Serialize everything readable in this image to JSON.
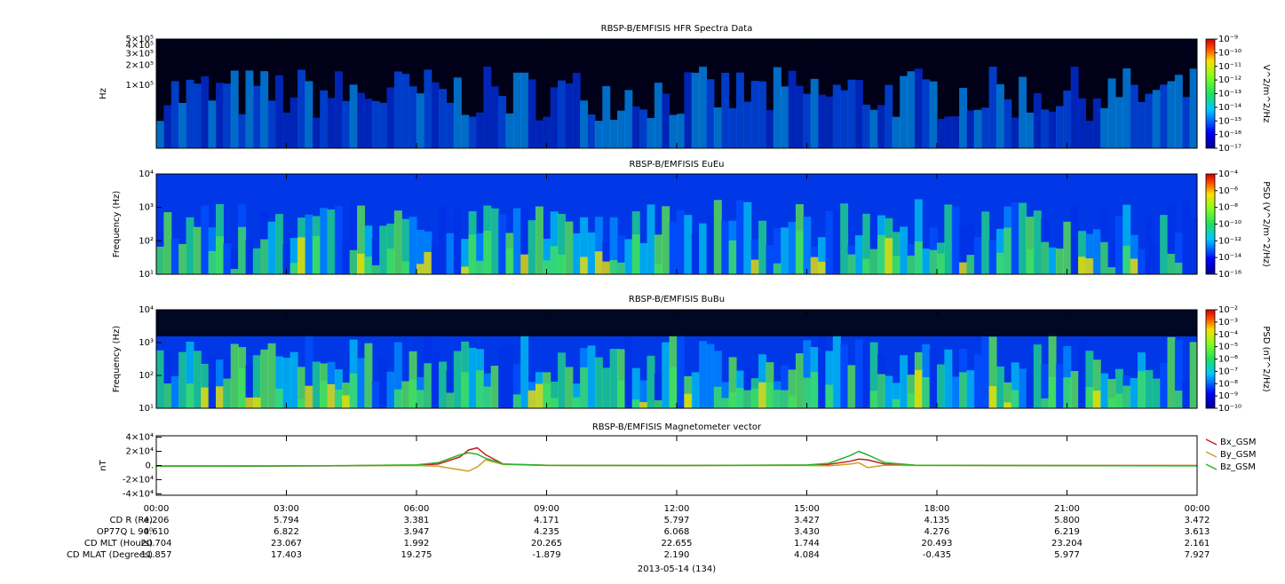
{
  "chart_data": [
    {
      "type": "spectrogram",
      "title": "RBSP-B/EMFISIS  HFR Spectra Data",
      "ylabel": "Hz",
      "log_y": true,
      "ylim": [
        11000,
        500000
      ],
      "yticks": [
        {
          "value": 500000,
          "label": "5×10⁵"
        },
        {
          "value": 400000,
          "label": "4×10⁵"
        },
        {
          "value": 300000,
          "label": "3×10⁵"
        },
        {
          "value": 200000,
          "label": "2×10⁵"
        },
        {
          "value": 100000,
          "label": "1×10⁵"
        }
      ],
      "colorbar": {
        "label": "V^2/m^2/Hz",
        "log": true,
        "clim": [
          1e-17,
          1e-09
        ],
        "ticks": [
          {
            "value": 1e-09,
            "label": "10⁻⁹"
          },
          {
            "value": 1e-10,
            "label": "10⁻¹⁰"
          },
          {
            "value": 1e-11,
            "label": "10⁻¹¹"
          },
          {
            "value": 1e-12,
            "label": "10⁻¹²"
          },
          {
            "value": 1e-13,
            "label": "10⁻¹³"
          },
          {
            "value": 1e-14,
            "label": "10⁻¹⁴"
          },
          {
            "value": 1e-15,
            "label": "10⁻¹⁵"
          },
          {
            "value": 1e-16,
            "label": "10⁻¹⁶"
          },
          {
            "value": 1e-17,
            "label": "10⁻¹⁷"
          }
        ]
      }
    },
    {
      "type": "spectrogram",
      "title": "RBSP-B/EMFISIS  EuEu",
      "ylabel": "Frequency (Hz)",
      "log_y": true,
      "ylim": [
        10,
        10000
      ],
      "yticks": [
        {
          "value": 10000,
          "label": "10⁴"
        },
        {
          "value": 1000,
          "label": "10³"
        },
        {
          "value": 100,
          "label": "10²"
        },
        {
          "value": 10,
          "label": "10¹"
        }
      ],
      "colorbar": {
        "label": "PSD (V^2/m^2/Hz)",
        "log": true,
        "clim": [
          1e-16,
          0.0001
        ],
        "ticks": [
          {
            "value": 0.0001,
            "label": "10⁻⁴"
          },
          {
            "value": 1e-06,
            "label": "10⁻⁶"
          },
          {
            "value": 1e-08,
            "label": "10⁻⁸"
          },
          {
            "value": 1e-10,
            "label": "10⁻¹⁰"
          },
          {
            "value": 1e-12,
            "label": "10⁻¹²"
          },
          {
            "value": 1e-14,
            "label": "10⁻¹⁴"
          },
          {
            "value": 1e-16,
            "label": "10⁻¹⁶"
          }
        ]
      }
    },
    {
      "type": "spectrogram",
      "title": "RBSP-B/EMFISIS  BuBu",
      "ylabel": "Frequency (Hz)",
      "log_y": true,
      "ylim": [
        10,
        10000
      ],
      "yticks": [
        {
          "value": 10000,
          "label": "10⁴"
        },
        {
          "value": 1000,
          "label": "10³"
        },
        {
          "value": 100,
          "label": "10²"
        },
        {
          "value": 10,
          "label": "10¹"
        }
      ],
      "colorbar": {
        "label": "PSD (nT^2/Hz)",
        "log": true,
        "clim": [
          1e-10,
          0.01
        ],
        "ticks": [
          {
            "value": 0.01,
            "label": "10⁻²"
          },
          {
            "value": 0.001,
            "label": "10⁻³"
          },
          {
            "value": 0.0001,
            "label": "10⁻⁴"
          },
          {
            "value": 1e-05,
            "label": "10⁻⁵"
          },
          {
            "value": 1e-06,
            "label": "10⁻⁶"
          },
          {
            "value": 1e-07,
            "label": "10⁻⁷"
          },
          {
            "value": 1e-08,
            "label": "10⁻⁸"
          },
          {
            "value": 1e-09,
            "label": "10⁻⁹"
          },
          {
            "value": 1e-10,
            "label": "10⁻¹⁰"
          }
        ]
      }
    },
    {
      "type": "line",
      "title": "RBSP-B/EMFISIS  Magnetometer vector",
      "ylabel": "nT",
      "ylim": [
        -42000,
        42000
      ],
      "yticks": [
        {
          "value": 40000,
          "label": "4×10⁴"
        },
        {
          "value": 20000,
          "label": "2×10⁴"
        },
        {
          "value": 0,
          "label": "0."
        },
        {
          "value": -20000,
          "label": "-2×10⁴"
        },
        {
          "value": -40000,
          "label": "-4×10⁴"
        }
      ],
      "xlim": [
        0,
        24
      ],
      "xticks": [
        {
          "value": 0,
          "label": "00:00"
        },
        {
          "value": 3,
          "label": "03:00"
        },
        {
          "value": 6,
          "label": "06:00"
        },
        {
          "value": 9,
          "label": "09:00"
        },
        {
          "value": 12,
          "label": "12:00"
        },
        {
          "value": 15,
          "label": "15:00"
        },
        {
          "value": 18,
          "label": "18:00"
        },
        {
          "value": 21,
          "label": "21:00"
        },
        {
          "value": 24,
          "label": "00:00"
        }
      ],
      "x": [
        0,
        2,
        4,
        6,
        6.5,
        7,
        7.2,
        7.4,
        7.6,
        8,
        9,
        12,
        15,
        15.5,
        16,
        16.2,
        16.4,
        16.8,
        17.5,
        20,
        24
      ],
      "series": [
        {
          "name": "Bx_GSM",
          "color": "#c81e1e",
          "values": [
            -1000,
            -800,
            -500,
            500,
            2000,
            12000,
            22000,
            25000,
            15000,
            2000,
            300,
            0,
            500,
            1500,
            6000,
            9000,
            8000,
            2000,
            300,
            0,
            0
          ]
        },
        {
          "name": "By_GSM",
          "color": "#c8a028",
          "values": [
            -500,
            -400,
            -300,
            0,
            -1000,
            -6000,
            -8000,
            -2000,
            8000,
            1500,
            0,
            0,
            0,
            -500,
            2000,
            4000,
            -3000,
            500,
            0,
            0,
            0
          ]
        },
        {
          "name": "Bz_GSM",
          "color": "#28b428",
          "values": [
            -800,
            -700,
            -400,
            1000,
            4000,
            15000,
            18000,
            16000,
            10000,
            2000,
            300,
            0,
            800,
            3000,
            14000,
            20000,
            15000,
            4000,
            500,
            0,
            -500
          ]
        }
      ],
      "legend": "right",
      "ephemeris": [
        {
          "label": "CD R (Re)",
          "values": [
            "4.206",
            "5.794",
            "3.381",
            "4.171",
            "5.797",
            "3.427",
            "4.135",
            "5.800",
            "3.472"
          ]
        },
        {
          "label": "OP77Q L 90⁰",
          "values": [
            "4.610",
            "6.822",
            "3.947",
            "4.235",
            "6.068",
            "3.430",
            "4.276",
            "6.219",
            "3.613"
          ]
        },
        {
          "label": "CD MLT (Hours)",
          "values": [
            "20.704",
            "23.067",
            "1.992",
            "20.265",
            "22.655",
            "1.744",
            "20.493",
            "23.204",
            "2.161"
          ]
        },
        {
          "label": "CD MLAT (Degrees)",
          "values": [
            "11.857",
            "17.403",
            "19.275",
            "-1.879",
            "2.190",
            "4.084",
            "-0.435",
            "5.977",
            "7.927"
          ]
        }
      ],
      "xlabel": "2013-05-14 (134)"
    }
  ]
}
